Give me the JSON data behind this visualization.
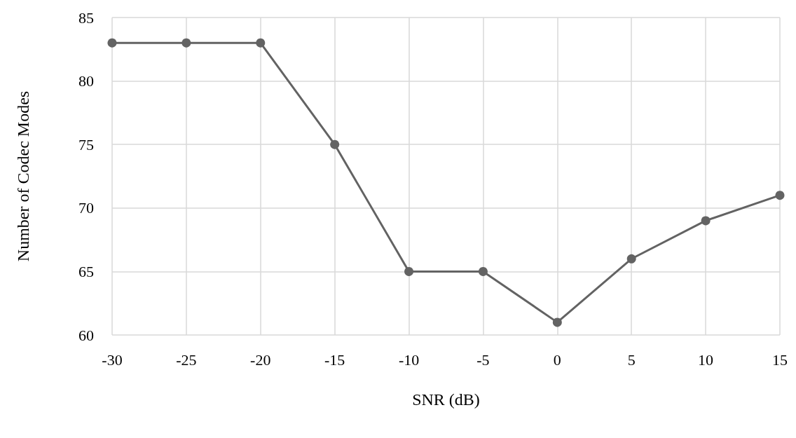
{
  "chart_data": {
    "type": "line",
    "xlabel": "SNR (dB)",
    "ylabel": "Number of Codec Modes",
    "x": [
      -30,
      -25,
      -20,
      -15,
      -10,
      -5,
      0,
      5,
      10,
      15
    ],
    "series": [
      {
        "color": "#636363",
        "values": [
          83,
          83,
          83,
          75,
          65,
          65,
          61,
          66,
          69,
          71
        ]
      }
    ],
    "xlim": [
      -30,
      15
    ],
    "xticks": [
      -30,
      -25,
      -20,
      -15,
      -10,
      -5,
      0,
      5,
      10,
      15
    ],
    "ylim": [
      60,
      85
    ],
    "yticks": [
      60,
      65,
      70,
      75,
      80,
      85
    ],
    "grid": true,
    "marker": "circle",
    "line_style": "solid"
  }
}
